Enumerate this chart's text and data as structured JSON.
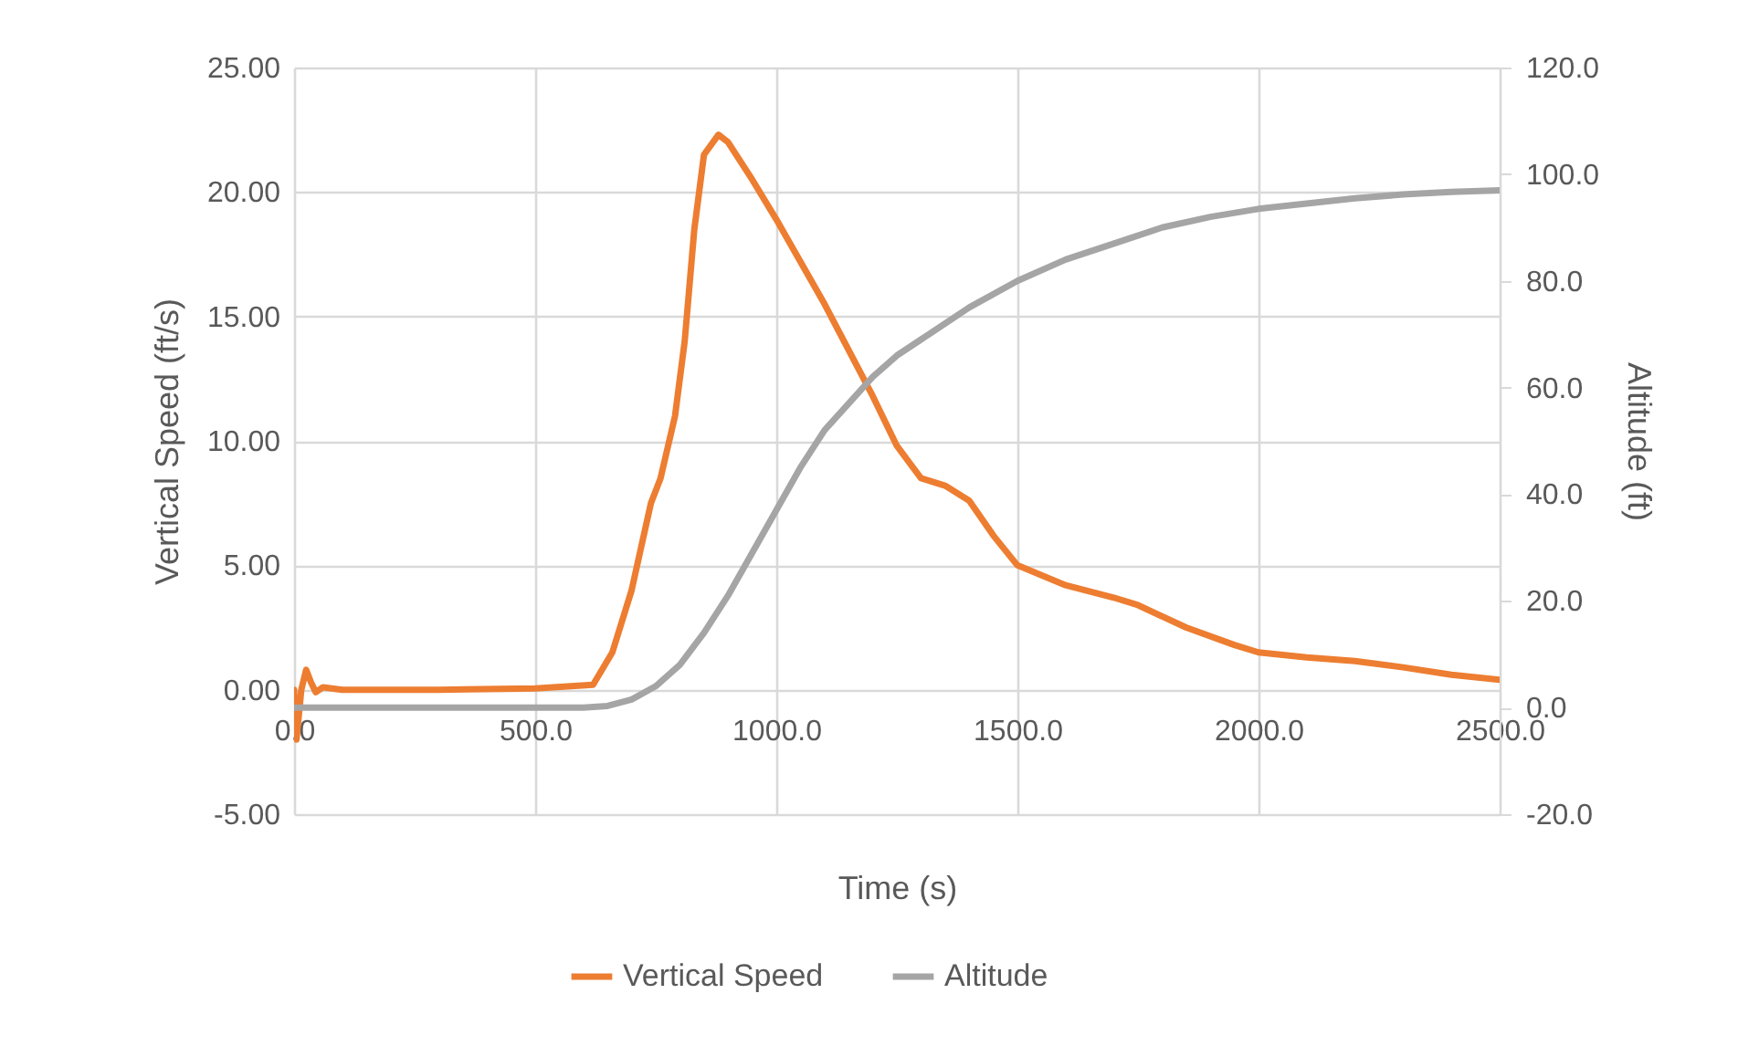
{
  "chart_data": {
    "type": "line",
    "xlabel": "Time (s)",
    "ylabel": "Vertical Speed (ft/s)",
    "y2label": "Altitude (ft)",
    "xlim": [
      0,
      2500
    ],
    "xticks": [
      {
        "value": 0,
        "label": "0.0"
      },
      {
        "value": 500,
        "label": "500.0"
      },
      {
        "value": 1000,
        "label": "1000.0"
      },
      {
        "value": 1500,
        "label": "1500.0"
      },
      {
        "value": 2000,
        "label": "2000.0"
      },
      {
        "value": 2500,
        "label": "2500.0"
      }
    ],
    "ylim": [
      -5,
      25
    ],
    "yticks": [
      {
        "value": -5,
        "label": "-5.00"
      },
      {
        "value": 0,
        "label": "0.00"
      },
      {
        "value": 5,
        "label": "5.00"
      },
      {
        "value": 10,
        "label": "10.00"
      },
      {
        "value": 15,
        "label": "15.00"
      },
      {
        "value": 20,
        "label": "20.00"
      },
      {
        "value": 25,
        "label": "25.00"
      }
    ],
    "y2lim": [
      -20,
      120
    ],
    "y2ticks": [
      {
        "value": -20,
        "label": "-20.0"
      },
      {
        "value": 0,
        "label": "0.0"
      },
      {
        "value": 20,
        "label": "20.0"
      },
      {
        "value": 40,
        "label": "40.0"
      },
      {
        "value": 60,
        "label": "60.0"
      },
      {
        "value": 80,
        "label": "80.0"
      },
      {
        "value": 100,
        "label": "100.0"
      },
      {
        "value": 120,
        "label": "120.0"
      }
    ],
    "grid": true,
    "legend": "bottom",
    "marker": "none",
    "line_style": "solid",
    "series": [
      {
        "name": "Vertical Speed",
        "color": "#ed7d31",
        "axis": "y",
        "x": [
          0,
          5,
          15,
          25,
          35,
          45,
          60,
          100,
          300,
          500,
          620,
          660,
          700,
          740,
          760,
          790,
          810,
          830,
          850,
          880,
          900,
          950,
          1000,
          1100,
          1200,
          1250,
          1300,
          1350,
          1400,
          1450,
          1500,
          1600,
          1700,
          1750,
          1850,
          1950,
          2000,
          2100,
          2200,
          2300,
          2400,
          2500
        ],
        "values": [
          0,
          -2.0,
          0,
          0.8,
          0.3,
          -0.1,
          0.1,
          0,
          0,
          0.05,
          0.2,
          1.5,
          4,
          7.5,
          8.5,
          11,
          14,
          18.5,
          21.5,
          22.3,
          22.0,
          20.5,
          18.9,
          15.5,
          11.8,
          9.8,
          8.5,
          8.2,
          7.6,
          6.2,
          5.0,
          4.2,
          3.7,
          3.4,
          2.5,
          1.8,
          1.5,
          1.3,
          1.15,
          0.9,
          0.6,
          0.4
        ]
      },
      {
        "name": "Altitude",
        "color": "#a5a5a5",
        "axis": "y2",
        "x": [
          0,
          600,
          650,
          700,
          750,
          800,
          850,
          900,
          950,
          1000,
          1050,
          1100,
          1150,
          1200,
          1250,
          1300,
          1400,
          1500,
          1600,
          1700,
          1800,
          1900,
          2000,
          2100,
          2200,
          2300,
          2400,
          2500
        ],
        "values": [
          0,
          0,
          0.3,
          1.5,
          4,
          8,
          14,
          21,
          29,
          37,
          45,
          52,
          57,
          62,
          66,
          69,
          75,
          80,
          84,
          87,
          90,
          92,
          93.5,
          94.5,
          95.5,
          96.2,
          96.7,
          97
        ]
      }
    ]
  }
}
